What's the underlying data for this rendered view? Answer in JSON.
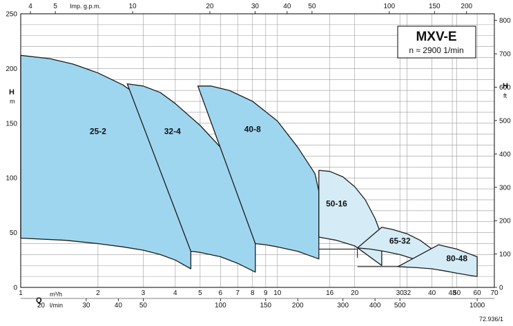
{
  "chart_data": {
    "type": "area",
    "title": "MXV-E",
    "subtitle": "n ≈ 2900 1/min",
    "ylabel": "H",
    "ylabel_unit": "m",
    "ylabel_right": "H",
    "ylabel_right_unit": "ft",
    "xlabel": "Q",
    "x_scale": "log",
    "xlim": [
      1,
      70
    ],
    "ylim": [
      0,
      250
    ],
    "y_right_lim": [
      0,
      820
    ],
    "grid": true,
    "colors": {
      "dark_fill": "#9fd6ef",
      "light_fill": "#d5ecf7",
      "outline": "#1a1a1a",
      "grid": "#9a9a9a"
    },
    "x_primary_unit": "m³/h",
    "x_primary_ticks": [
      {
        "v": 1,
        "label": "1"
      },
      {
        "v": 2,
        "label": "2"
      },
      {
        "v": 3,
        "label": "3"
      },
      {
        "v": 4,
        "label": "4"
      },
      {
        "v": 5,
        "label": "5"
      },
      {
        "v": 6,
        "label": "6"
      },
      {
        "v": 7,
        "label": "7"
      },
      {
        "v": 8,
        "label": "8"
      },
      {
        "v": 9,
        "label": "9"
      },
      {
        "v": 10,
        "label": "10"
      },
      {
        "v": 16,
        "label": "16"
      },
      {
        "v": 20,
        "label": "20"
      },
      {
        "v": 30,
        "label": "30"
      },
      {
        "v": 32,
        "label": "32"
      },
      {
        "v": 40,
        "label": "40"
      },
      {
        "v": 48,
        "label": "48"
      },
      {
        "v": 50,
        "label": "50"
      },
      {
        "v": 60,
        "label": "60"
      },
      {
        "v": 70,
        "label": "70"
      }
    ],
    "x_secondary_unit": "l/min",
    "x_secondary_ticks": [
      {
        "v": 20,
        "label": "20"
      },
      {
        "v": 30,
        "label": "30"
      },
      {
        "v": 40,
        "label": "40"
      },
      {
        "v": 50,
        "label": "50"
      },
      {
        "v": 100,
        "label": "100"
      },
      {
        "v": 150,
        "label": "150"
      },
      {
        "v": 200,
        "label": "200"
      },
      {
        "v": 300,
        "label": "300"
      },
      {
        "v": 400,
        "label": "400"
      },
      {
        "v": 500,
        "label": "500"
      },
      {
        "v": 1000,
        "label": "1000"
      }
    ],
    "x_top_unit": "Imp. g.p.m.",
    "x_top_ticks": [
      {
        "v": 4,
        "label": "4"
      },
      {
        "v": 5,
        "label": "5"
      },
      {
        "v": 10,
        "label": "10"
      },
      {
        "v": 20,
        "label": "20"
      },
      {
        "v": 30,
        "label": "30"
      },
      {
        "v": 40,
        "label": "40"
      },
      {
        "v": 50,
        "label": "50"
      },
      {
        "v": 100,
        "label": "100"
      },
      {
        "v": 150,
        "label": "150"
      },
      {
        "v": 200,
        "label": "200"
      }
    ],
    "y_left_ticks": [
      0,
      50,
      100,
      150,
      200,
      250
    ],
    "y_right_ticks": [
      0,
      100,
      200,
      300,
      400,
      500,
      600,
      700,
      800
    ],
    "series": [
      {
        "name": "25-2",
        "fill": "dark",
        "label_at": {
          "q": 2.0,
          "h": 140
        },
        "upper": [
          [
            1.0,
            212
          ],
          [
            1.3,
            209
          ],
          [
            1.6,
            204
          ],
          [
            2.0,
            196
          ],
          [
            2.5,
            185
          ],
          [
            3.0,
            172
          ],
          [
            3.5,
            158
          ],
          [
            4.0,
            140
          ],
          [
            4.5,
            112
          ],
          [
            4.6,
            100
          ]
        ],
        "lower": [
          [
            1.0,
            45
          ],
          [
            1.5,
            43
          ],
          [
            2.0,
            40
          ],
          [
            2.5,
            37
          ],
          [
            3.0,
            34
          ],
          [
            3.5,
            30
          ],
          [
            4.0,
            25
          ],
          [
            4.6,
            17
          ]
        ]
      },
      {
        "name": "32-4",
        "fill": "dark",
        "label_at": {
          "q": 3.9,
          "h": 140
        },
        "upper": [
          [
            2.6,
            186
          ],
          [
            3.0,
            184
          ],
          [
            3.5,
            178
          ],
          [
            4.0,
            168
          ],
          [
            5.0,
            148
          ],
          [
            6.0,
            128
          ],
          [
            7.0,
            108
          ],
          [
            8.0,
            82
          ],
          [
            8.2,
            70
          ]
        ],
        "lower": [
          [
            4.6,
            33
          ],
          [
            5.0,
            32
          ],
          [
            6.0,
            28
          ],
          [
            7.0,
            22
          ],
          [
            8.2,
            14
          ]
        ]
      },
      {
        "name": "40-8",
        "fill": "dark",
        "label_at": {
          "q": 8.0,
          "h": 142
        },
        "upper": [
          [
            4.9,
            184
          ],
          [
            5.5,
            184
          ],
          [
            6.5,
            180
          ],
          [
            8.0,
            170
          ],
          [
            10.0,
            152
          ],
          [
            12.0,
            128
          ],
          [
            14.0,
            104
          ],
          [
            14.5,
            88
          ]
        ],
        "lower": [
          [
            8.2,
            40
          ],
          [
            9.0,
            39
          ],
          [
            10.0,
            37
          ],
          [
            12.0,
            33
          ],
          [
            14.5,
            26
          ]
        ]
      },
      {
        "name": "50-16",
        "fill": "light",
        "label_at": {
          "q": 17.0,
          "h": 74
        },
        "upper": [
          [
            14.5,
            107
          ],
          [
            16.0,
            106
          ],
          [
            18.0,
            101
          ],
          [
            20.0,
            92
          ],
          [
            22.0,
            80
          ],
          [
            24.0,
            63
          ],
          [
            25.5,
            47
          ]
        ],
        "lower": [
          [
            14.5,
            46
          ],
          [
            17.0,
            43
          ],
          [
            20.0,
            38
          ],
          [
            22.0,
            31
          ],
          [
            23.5,
            26
          ],
          [
            25.5,
            20
          ]
        ]
      },
      {
        "name": "65-32",
        "fill": "light",
        "label_at": {
          "q": 30.0,
          "h": 40
        },
        "upper": [
          [
            25.5,
            55
          ],
          [
            28.0,
            53
          ],
          [
            32.0,
            49
          ],
          [
            36.0,
            43
          ],
          [
            40.0,
            35
          ],
          [
            42.5,
            30
          ]
        ],
        "lower": [
          [
            20.5,
            36
          ],
          [
            23.0,
            35
          ],
          [
            26.0,
            33
          ],
          [
            30.0,
            30
          ],
          [
            34.0,
            26
          ],
          [
            38.0,
            22
          ],
          [
            42.5,
            17
          ]
        ]
      },
      {
        "name": "80-48",
        "fill": "light",
        "label_at": {
          "q": 50.0,
          "h": 24
        },
        "upper": [
          [
            42.5,
            39
          ],
          [
            46.0,
            37
          ],
          [
            50.0,
            35
          ],
          [
            54.0,
            32
          ],
          [
            60.0,
            28
          ],
          [
            60.0,
            25
          ]
        ],
        "lower": [
          [
            29.5,
            19
          ],
          [
            35.0,
            18
          ],
          [
            40.0,
            17
          ],
          [
            45.0,
            15
          ],
          [
            50.0,
            13
          ],
          [
            56.0,
            11
          ],
          [
            60.0,
            10
          ]
        ]
      }
    ],
    "annotation_lines": [
      [
        [
          14.5,
          35
        ],
        [
          20.5,
          35
        ],
        [
          20.5,
          27
        ]
      ],
      [
        [
          20.5,
          19
        ],
        [
          29.5,
          19
        ]
      ]
    ],
    "footnote": "72.936/1"
  }
}
